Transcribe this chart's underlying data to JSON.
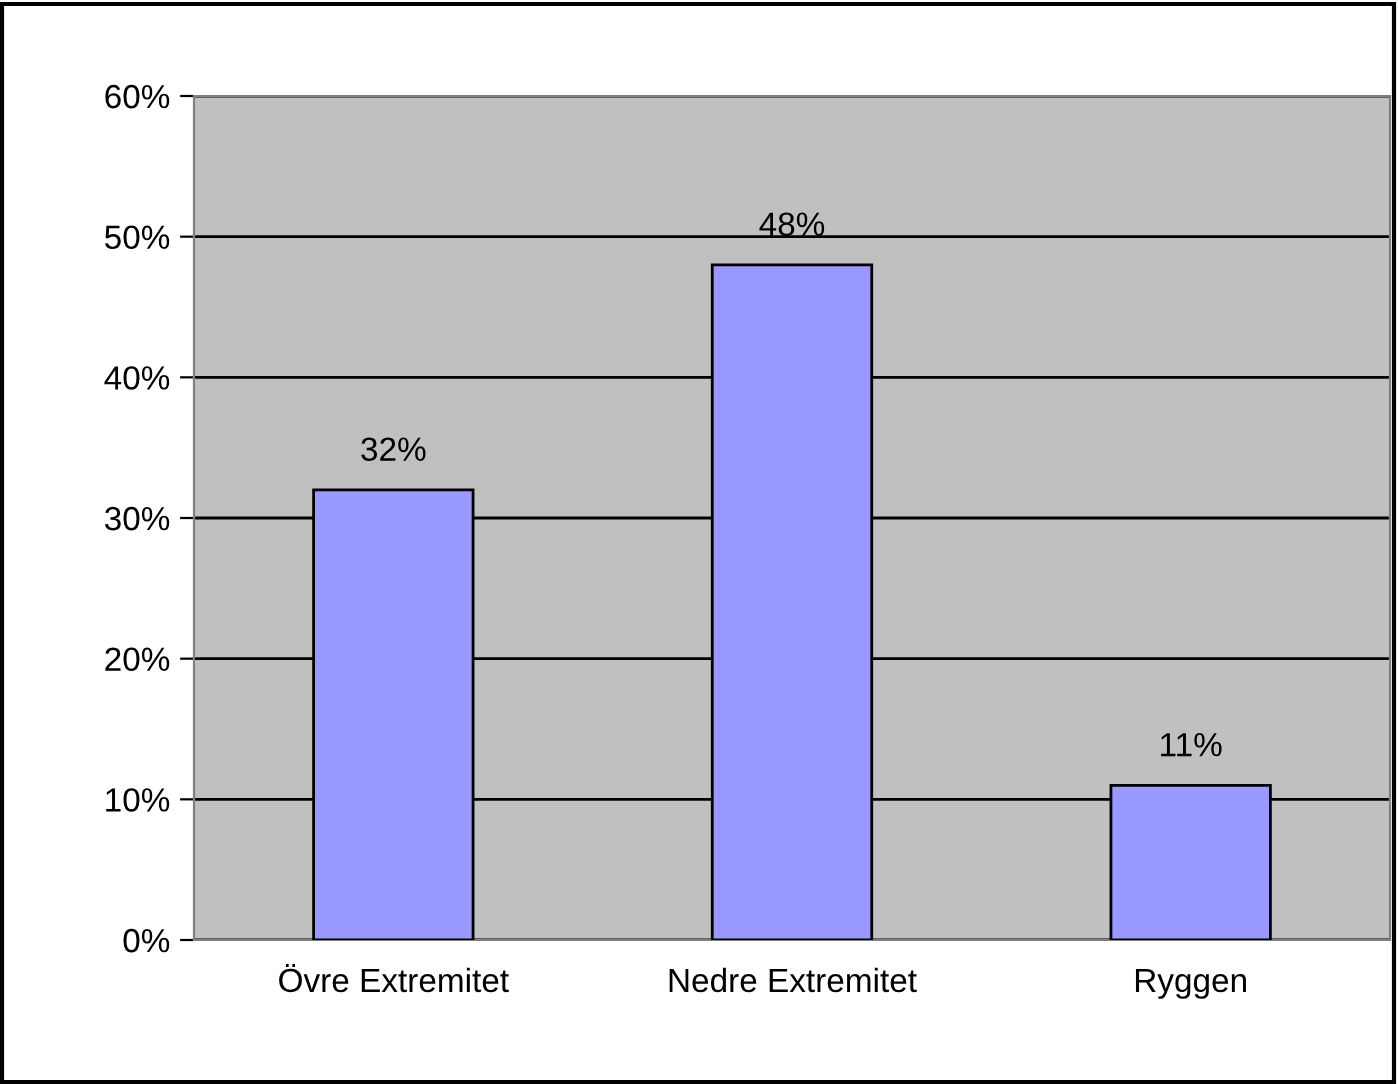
{
  "chart_data": {
    "type": "bar",
    "categories": [
      "Övre Extremitet",
      "Nedre Extremitet",
      "Ryggen"
    ],
    "values": [
      32,
      48,
      11
    ],
    "value_labels": [
      "32%",
      "48%",
      "11%"
    ],
    "color": "#9999ff",
    "ylim": [
      0,
      60
    ],
    "yticks": [
      {
        "value": 0,
        "label": "0%"
      },
      {
        "value": 10,
        "label": "10%"
      },
      {
        "value": 20,
        "label": "20%"
      },
      {
        "value": 30,
        "label": "30%"
      },
      {
        "value": 40,
        "label": "40%"
      },
      {
        "value": 50,
        "label": "50%"
      },
      {
        "value": 60,
        "label": "60%"
      }
    ],
    "grid": "y",
    "legend": false
  }
}
